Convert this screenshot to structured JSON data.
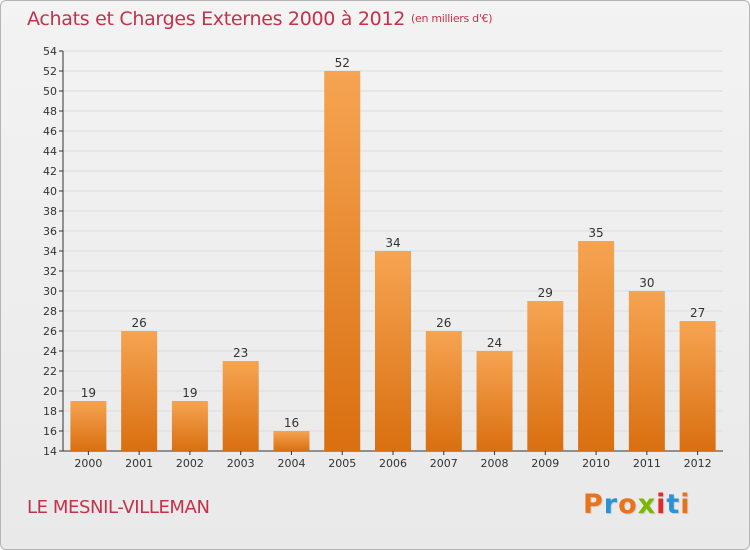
{
  "header": {
    "title": "Achats et Charges Externes 2000 à 2012",
    "unit": "(en milliers d'€)"
  },
  "footer": {
    "town": "LE MESNIL-VILLEMAN",
    "logo": "Proxiti",
    "logo_colors": [
      "#e8731a",
      "#2a93d5",
      "#e8731a",
      "#7ab800",
      "#e12b2b",
      "#2a93d5",
      "#e8731a"
    ]
  },
  "colors": {
    "bar_top": "#f6a452",
    "bar_bottom": "#d96f10",
    "title": "#c5314a",
    "axis": "#333333",
    "grid": "#dcdcdc"
  },
  "chart_data": {
    "type": "bar",
    "categories": [
      "2000",
      "2001",
      "2002",
      "2003",
      "2004",
      "2005",
      "2006",
      "2007",
      "2008",
      "2009",
      "2010",
      "2011",
      "2012"
    ],
    "values": [
      19,
      26,
      19,
      23,
      16,
      52,
      34,
      26,
      24,
      29,
      35,
      30,
      27
    ],
    "ylim": [
      14,
      54
    ],
    "ytick_step": 2,
    "title": "Achats et Charges Externes 2000 à 2012",
    "subtitle": "(en milliers d'€)",
    "xlabel": "",
    "ylabel": "",
    "grid": true,
    "data_labels": true
  }
}
